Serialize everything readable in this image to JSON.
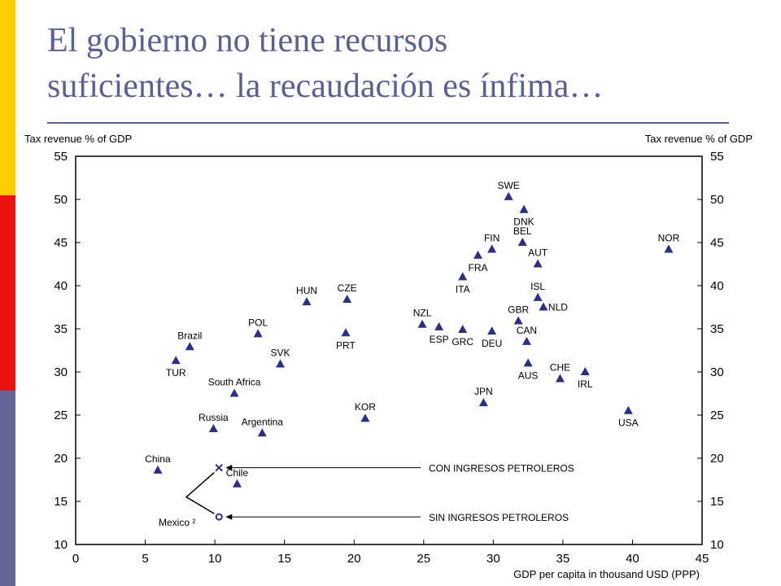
{
  "slide": {
    "title_line1": "El gobierno no tiene recursos",
    "title_line2": "suficientes… la recaudación es ínfima…",
    "accent_colors": [
      "#ffcc00",
      "#ee1111",
      "#666699"
    ],
    "title_color": "#5c5f93"
  },
  "chart_data": {
    "type": "scatter",
    "ylabel_left": "Tax revenue  % of GDP",
    "ylabel_right": "Tax revenue  % of GDP",
    "xlabel": "GDP per capita in thousand USD (PPP)",
    "xlim": [
      0,
      45
    ],
    "ylim": [
      10,
      55
    ],
    "x_ticks": [
      0,
      5,
      10,
      15,
      20,
      25,
      30,
      35,
      40,
      45
    ],
    "y_ticks": [
      10,
      15,
      20,
      25,
      30,
      35,
      40,
      45,
      50,
      55
    ],
    "marker_color": "#2b2f86",
    "points": [
      {
        "label": "SWE",
        "x": 31.1,
        "y": 50.3
      },
      {
        "label": "DNK",
        "x": 32.2,
        "y": 48.8
      },
      {
        "label": "BEL",
        "x": 32.1,
        "y": 45.0
      },
      {
        "label": "FIN",
        "x": 29.9,
        "y": 44.2
      },
      {
        "label": "AUT",
        "x": 33.2,
        "y": 42.5
      },
      {
        "label": "FRA",
        "x": 28.9,
        "y": 43.5
      },
      {
        "label": "NOR",
        "x": 42.6,
        "y": 44.2
      },
      {
        "label": "ITA",
        "x": 27.8,
        "y": 41.0
      },
      {
        "label": "ISL",
        "x": 33.2,
        "y": 38.6
      },
      {
        "label": "NLD",
        "x": 33.6,
        "y": 37.5
      },
      {
        "label": "GBR",
        "x": 31.8,
        "y": 35.9
      },
      {
        "label": "NZL",
        "x": 24.9,
        "y": 35.5
      },
      {
        "label": "ESP",
        "x": 26.1,
        "y": 35.2
      },
      {
        "label": "GRC",
        "x": 27.8,
        "y": 34.9
      },
      {
        "label": "DEU",
        "x": 29.9,
        "y": 34.7
      },
      {
        "label": "CAN",
        "x": 32.4,
        "y": 33.5
      },
      {
        "label": "AUS",
        "x": 32.5,
        "y": 31.0
      },
      {
        "label": "CHE",
        "x": 34.8,
        "y": 29.2
      },
      {
        "label": "IRL",
        "x": 36.6,
        "y": 30.0
      },
      {
        "label": "USA",
        "x": 39.7,
        "y": 25.5
      },
      {
        "label": "JPN",
        "x": 29.3,
        "y": 26.4
      },
      {
        "label": "KOR",
        "x": 20.8,
        "y": 24.6
      },
      {
        "label": "HUN",
        "x": 16.6,
        "y": 38.1
      },
      {
        "label": "CZE",
        "x": 19.5,
        "y": 38.4
      },
      {
        "label": "PRT",
        "x": 19.4,
        "y": 34.5
      },
      {
        "label": "POL",
        "x": 13.1,
        "y": 34.4
      },
      {
        "label": "SVK",
        "x": 14.7,
        "y": 30.9
      },
      {
        "label": "Brazil",
        "x": 8.2,
        "y": 32.9
      },
      {
        "label": "TUR",
        "x": 7.2,
        "y": 31.3
      },
      {
        "label": "South Africa",
        "x": 11.4,
        "y": 27.5
      },
      {
        "label": "Russia",
        "x": 9.9,
        "y": 23.4
      },
      {
        "label": "Argentina",
        "x": 13.4,
        "y": 22.9
      },
      {
        "label": "China",
        "x": 5.9,
        "y": 18.6
      },
      {
        "label": "Chile",
        "x": 11.6,
        "y": 17.0
      }
    ],
    "mexico": {
      "label": "Mexico ²",
      "with_oil": {
        "x": 10.3,
        "y": 18.9,
        "marker": "x"
      },
      "without_oil": {
        "x": 10.3,
        "y": 13.2,
        "marker": "o"
      }
    },
    "annotations": [
      {
        "text": "CON INGRESOS PETROLEROS",
        "points_to": "with_oil"
      },
      {
        "text": "SIN INGRESOS PETROLEROS",
        "points_to": "without_oil"
      }
    ]
  }
}
